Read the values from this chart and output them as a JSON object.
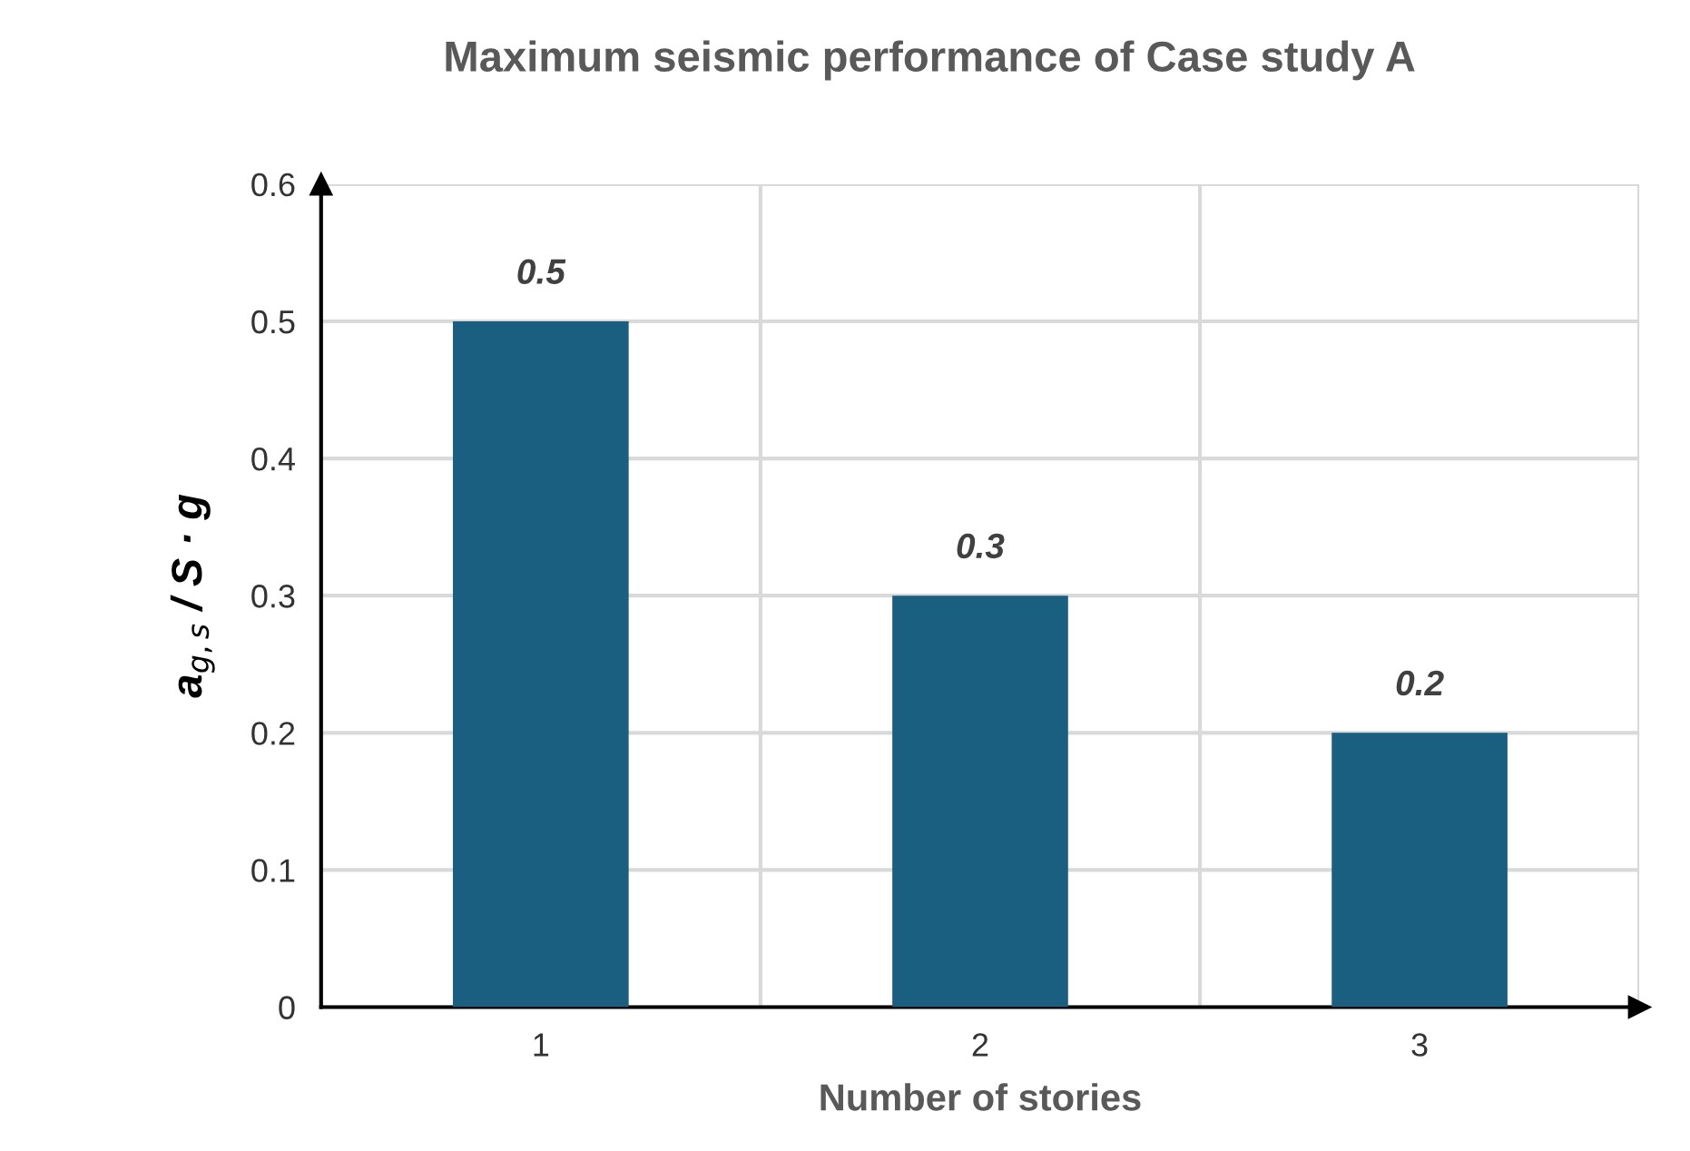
{
  "chart_data": {
    "type": "bar",
    "title": "Maximum seismic performance of Case study A",
    "xlabel": "Number of stories",
    "ylabel": "a$_{g,s}$ / S · g",
    "categories": [
      "1",
      "2",
      "3"
    ],
    "values": [
      0.5,
      0.3,
      0.2
    ],
    "color": "#1a5e80",
    "ylim": [
      0,
      0.6
    ],
    "yticks": [
      0,
      0.1,
      0.2,
      0.3,
      0.4,
      0.5,
      0.6
    ],
    "grid": true,
    "data_labels": true
  }
}
